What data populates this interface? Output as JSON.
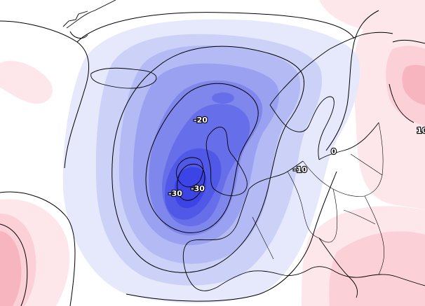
{
  "map": {
    "colors": {
      "background": "#ffffff",
      "anomaly_fill_palette": [
        "#e6e8fb",
        "#ccd1f8",
        "#b3baf4",
        "#9aa1f0",
        "#8087ec",
        "#676eea",
        "#5058e8",
        "#3c44e6"
      ],
      "positive_fill_palette": [
        "#fde7ea",
        "#fbd0d6",
        "#f7b5bf"
      ],
      "contour": "#000000",
      "coastline": "#000000",
      "border": "#000000"
    },
    "contour_labels": [
      {
        "id": "minus-20",
        "text": "-20"
      },
      {
        "id": "minus-30-west",
        "text": "-30"
      },
      {
        "id": "minus-30-east",
        "text": "-30"
      },
      {
        "id": "minus-10",
        "text": "-10"
      },
      {
        "id": "zero",
        "text": "0"
      },
      {
        "id": "plus-10",
        "text": "10"
      }
    ]
  }
}
